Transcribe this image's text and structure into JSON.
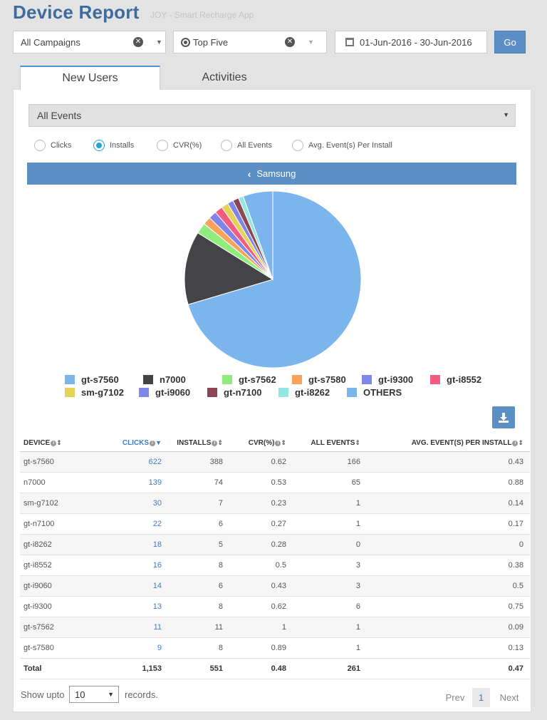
{
  "header": {
    "title": "Device Report",
    "subtitle": "JOY - Smart Recharge App"
  },
  "filters": {
    "campaign": "All Campaigns",
    "top": "Top Five",
    "date_range": "01-Jun-2016 - 30-Jun-2016",
    "go_label": "Go"
  },
  "tabs": {
    "new_users": "New Users",
    "activities": "Activities"
  },
  "event_select": "All Events",
  "radios": [
    {
      "label": "Clicks",
      "selected": false
    },
    {
      "label": "Installs",
      "selected": true
    },
    {
      "label": "CVR(%)",
      "selected": false
    },
    {
      "label": "All Events",
      "selected": false
    },
    {
      "label": "Avg. Event(s) Per Install",
      "selected": false
    }
  ],
  "breadcrumb": "Samsung",
  "colors": {
    "accent": "#5b8fc6",
    "link": "#3b7cc4"
  },
  "pie": {
    "slices": [
      {
        "label": "gt-s7560",
        "value": 388,
        "color": "#7cb5ec"
      },
      {
        "label": "n7000",
        "value": 74,
        "color": "#434348"
      },
      {
        "label": "gt-s7562",
        "value": 11,
        "color": "#90ed7d"
      },
      {
        "label": "gt-s7580",
        "value": 8,
        "color": "#f7a35c"
      },
      {
        "label": "gt-i9300",
        "value": 8,
        "color": "#8085e9"
      },
      {
        "label": "gt-i8552",
        "value": 8,
        "color": "#f15c80"
      },
      {
        "label": "sm-g7102",
        "value": 7,
        "color": "#e4d354"
      },
      {
        "label": "gt-i9060",
        "value": 6,
        "color": "#8085e8"
      },
      {
        "label": "gt-n7100",
        "value": 6,
        "color": "#8d4653"
      },
      {
        "label": "gt-i8262",
        "value": 5,
        "color": "#91e8e1"
      },
      {
        "label": "OTHERS",
        "value": 30,
        "color": "#7cb5ec"
      }
    ]
  },
  "table": {
    "headers": {
      "device": "DEVICE",
      "clicks": "CLICKS",
      "installs": "INSTALLS",
      "cvr": "CVR(%)",
      "all_events": "ALL EVENTS",
      "avg": "AVG. EVENT(S) PER INSTALL"
    },
    "rows": [
      {
        "device": "gt-s7560",
        "clicks": "622",
        "installs": "388",
        "cvr": "0.62",
        "events": "166",
        "avg": "0.43"
      },
      {
        "device": "n7000",
        "clicks": "139",
        "installs": "74",
        "cvr": "0.53",
        "events": "65",
        "avg": "0.88"
      },
      {
        "device": "sm-g7102",
        "clicks": "30",
        "installs": "7",
        "cvr": "0.23",
        "events": "1",
        "avg": "0.14"
      },
      {
        "device": "gt-n7100",
        "clicks": "22",
        "installs": "6",
        "cvr": "0.27",
        "events": "1",
        "avg": "0.17"
      },
      {
        "device": "gt-i8262",
        "clicks": "18",
        "installs": "5",
        "cvr": "0.28",
        "events": "0",
        "avg": "0"
      },
      {
        "device": "gt-i8552",
        "clicks": "16",
        "installs": "8",
        "cvr": "0.5",
        "events": "3",
        "avg": "0.38"
      },
      {
        "device": "gt-i9060",
        "clicks": "14",
        "installs": "6",
        "cvr": "0.43",
        "events": "3",
        "avg": "0.5"
      },
      {
        "device": "gt-i9300",
        "clicks": "13",
        "installs": "8",
        "cvr": "0.62",
        "events": "6",
        "avg": "0.75"
      },
      {
        "device": "gt-s7562",
        "clicks": "11",
        "installs": "11",
        "cvr": "1",
        "events": "1",
        "avg": "0.09"
      },
      {
        "device": "gt-s7580",
        "clicks": "9",
        "installs": "8",
        "cvr": "0.89",
        "events": "1",
        "avg": "0.13"
      }
    ],
    "total": {
      "label": "Total",
      "clicks": "1,153",
      "installs": "551",
      "cvr": "0.48",
      "events": "261",
      "avg": "0.47"
    }
  },
  "footer": {
    "show_upto": "Show upto",
    "records_value": "10",
    "records_label": "records.",
    "prev": "Prev",
    "page": "1",
    "next": "Next"
  }
}
